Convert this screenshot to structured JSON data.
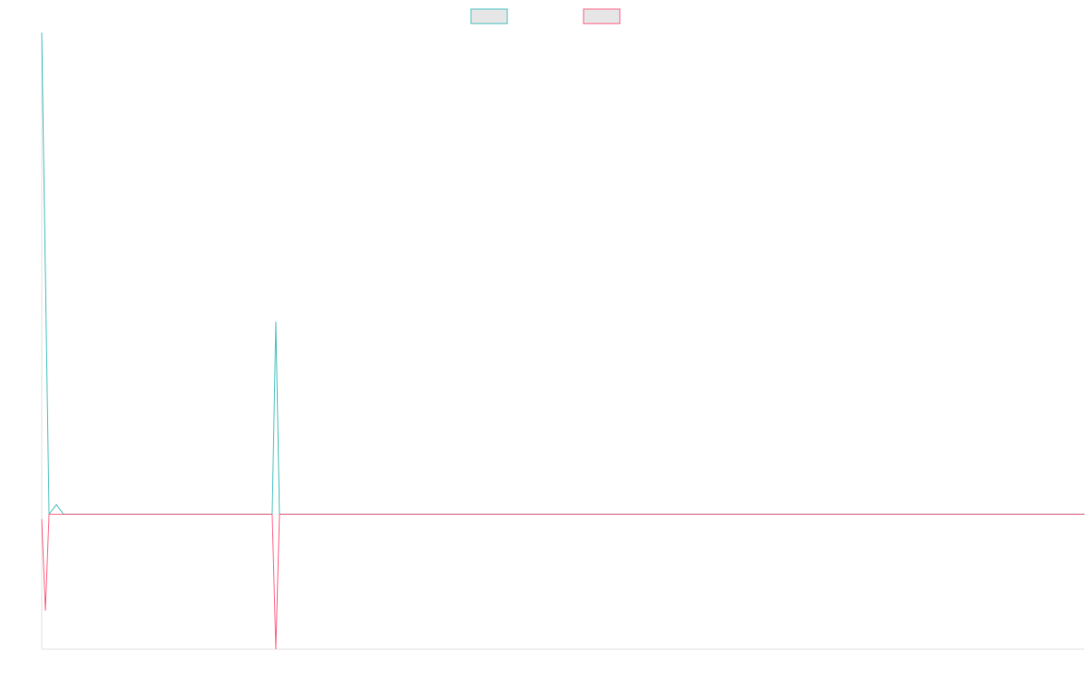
{
  "chart_data": {
    "type": "line",
    "x": [
      0,
      0.35,
      0.7,
      1.4,
      2.1,
      19.3,
      22.1,
      22.45,
      22.8,
      25,
      28.9,
      100
    ],
    "xlim": [
      0,
      100
    ],
    "ylim": [
      -1.4,
      5
    ],
    "grid": false,
    "legend": "top",
    "series": [
      {
        "color": "#4bc0c0",
        "values": [
          5,
          2.5,
          0,
          0.1,
          0,
          0,
          0,
          2.0,
          0,
          0,
          0,
          0
        ]
      },
      {
        "color": "#ff6384",
        "values": [
          -0.05,
          -1.0,
          0,
          0,
          0,
          0,
          0,
          -1.4,
          0,
          0,
          0,
          0
        ]
      }
    ]
  }
}
